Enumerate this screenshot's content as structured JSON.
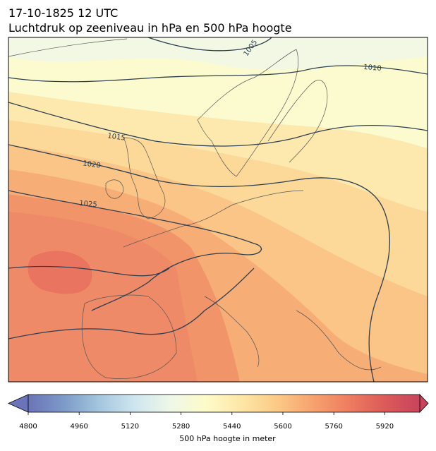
{
  "map": {
    "title": "17-10-1825 12 UTC",
    "subtitle": "Luchtdruk op zeeniveau in hPa en 500 hPa hoogte",
    "isobar_labels": [
      1005,
      1010,
      1015,
      1020,
      1025
    ],
    "colorbar": {
      "label": "500 hPa hoogte in meter",
      "lim": [
        4800,
        6030
      ],
      "ticks": [
        4800,
        4960,
        5120,
        5280,
        5440,
        5600,
        5760,
        5920
      ],
      "colors": [
        "#6b74b8",
        "#7d9ac8",
        "#a4c6de",
        "#cfe6ef",
        "#eef7e8",
        "#fdfbc9",
        "#fde6a6",
        "#fcc986",
        "#f7a26e",
        "#ee7d60",
        "#dc5b5a",
        "#c7445c"
      ]
    }
  }
}
